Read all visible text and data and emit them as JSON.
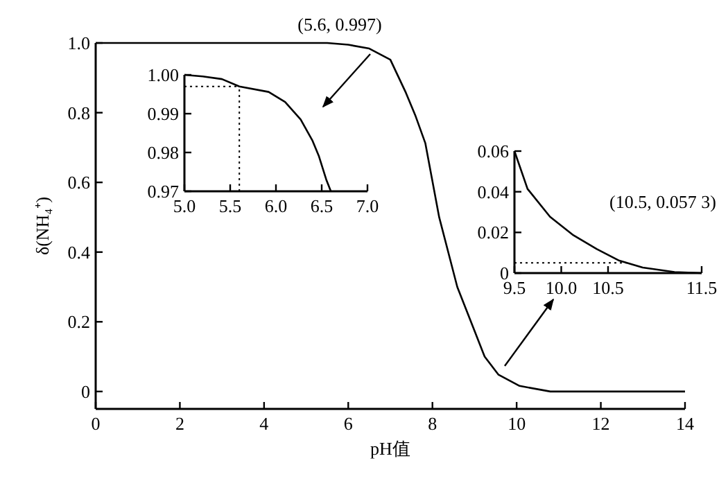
{
  "chart_data": [
    {
      "type": "line",
      "xlabel": "pH值",
      "ylabel": "δ(NH₄⁺)",
      "xlim": [
        0,
        14
      ],
      "ylim": [
        -0.05,
        1.0
      ],
      "xticks": [
        0,
        2,
        4,
        6,
        8,
        10,
        12,
        14
      ],
      "yticks": [
        0,
        0.2,
        0.4,
        0.6,
        0.8,
        {
          "value": 1,
          "label": "1.0"
        }
      ],
      "annotations": [
        "(5.6, 0.997)"
      ],
      "series": [
        {
          "color": "#000000",
          "x": [
            0,
            1,
            2,
            3,
            4,
            5,
            5.5,
            6,
            6.5,
            7,
            7.37,
            7.6,
            7.83,
            8.16,
            8.59,
            8.98,
            9.24,
            9.57,
            10.07,
            10.8,
            12,
            14
          ],
          "values": [
            1,
            1,
            1,
            1,
            1,
            1,
            1,
            0.995,
            0.984,
            0.952,
            0.857,
            0.79,
            0.713,
            0.5,
            0.3,
            0.18,
            0.1,
            0.048,
            0.016,
            0,
            0,
            0
          ]
        }
      ]
    },
    {
      "type": "line",
      "xlim": [
        5,
        7
      ],
      "ylim": [
        0.97,
        1.0
      ],
      "xticks": [
        {
          "value": 5,
          "label": "5.0"
        },
        5.5,
        {
          "value": 6,
          "label": "6.0"
        },
        6.5,
        {
          "value": 7,
          "label": "7.0"
        }
      ],
      "yticks": [
        0.97,
        0.98,
        0.99,
        {
          "value": 1,
          "label": "1.00"
        }
      ],
      "ref_lines": [
        {
          "axis": "x",
          "value": 5.6,
          "line_style": "dotted"
        },
        {
          "axis": "y",
          "value": 0.997,
          "line_style": "dotted"
        }
      ],
      "series": [
        {
          "color": "#000000",
          "x": [
            5.0,
            5.2,
            5.41,
            5.6,
            5.92,
            6.1,
            6.27,
            6.4,
            6.47,
            6.55,
            6.6
          ],
          "values": [
            1.0,
            0.9996,
            0.9989,
            0.997,
            0.9956,
            0.993,
            0.9885,
            0.983,
            0.979,
            0.973,
            0.97
          ]
        }
      ]
    },
    {
      "type": "line",
      "xlim": [
        9.5,
        11.5
      ],
      "ylim": [
        0,
        0.06
      ],
      "xticks": [
        9.5,
        {
          "value": 10,
          "label": "10.0"
        },
        10.5,
        11.5
      ],
      "yticks": [
        0,
        0.02,
        0.04,
        0.06
      ],
      "annotations": [
        "(10.5, 0.057 3)"
      ],
      "ref_lines": [
        {
          "axis": "y",
          "value": 0.005,
          "line_style": "dotted"
        }
      ],
      "series": [
        {
          "color": "#000000",
          "x": [
            9.5,
            9.64,
            9.88,
            10.13,
            10.38,
            10.62,
            10.87,
            11.21,
            11.5
          ],
          "values": [
            0.06,
            0.0414,
            0.0277,
            0.0186,
            0.0118,
            0.0061,
            0.0027,
            0.0005,
            0
          ]
        }
      ]
    }
  ]
}
